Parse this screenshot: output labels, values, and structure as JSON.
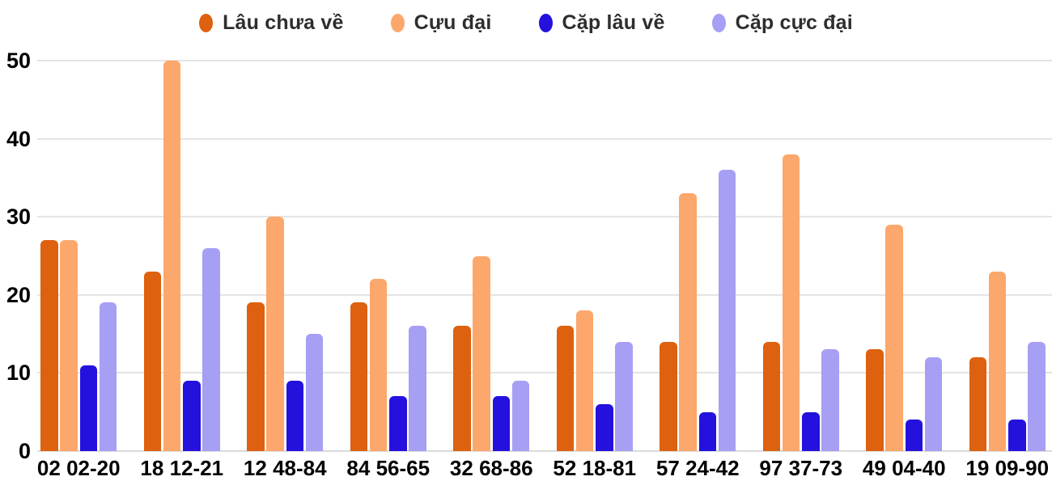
{
  "chart_data": {
    "type": "bar",
    "title": "",
    "xlabel": "",
    "ylabel": "",
    "categories": [
      "02 02-20",
      "18 12-21",
      "12 48-84",
      "84 56-65",
      "32 68-86",
      "52 18-81",
      "57 24-42",
      "97 37-73",
      "49 04-40",
      "19 09-90"
    ],
    "series": [
      {
        "name": "Lâu chưa về",
        "color": "#dd610f",
        "values": [
          27,
          23,
          19,
          19,
          16,
          16,
          14,
          14,
          13,
          12
        ]
      },
      {
        "name": "Cựu đại",
        "color": "#fca76b",
        "values": [
          27,
          50,
          30,
          22,
          25,
          18,
          33,
          38,
          29,
          23
        ]
      },
      {
        "name": "Cặp lâu về",
        "color": "#2411dd",
        "values": [
          11,
          9,
          9,
          7,
          7,
          6,
          5,
          5,
          4,
          4
        ]
      },
      {
        "name": "Cặp cực đại",
        "color": "#a69ff4",
        "values": [
          19,
          26,
          15,
          16,
          9,
          14,
          36,
          13,
          12,
          14
        ]
      }
    ],
    "y_ticks": [
      0,
      10,
      20,
      30,
      40,
      50
    ],
    "ylim": [
      0,
      50
    ],
    "grid": true,
    "legend_position": "top",
    "background_color": "#ffffff",
    "gridline_color": "#e4e4e4",
    "axis_text_color": "#000000",
    "legend_text_color": "#2e2e2e"
  }
}
